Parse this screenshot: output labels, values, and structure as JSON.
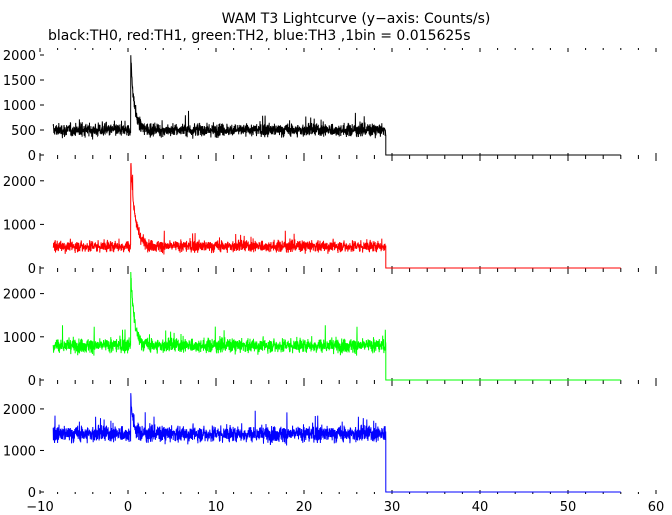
{
  "chart_data": {
    "type": "line",
    "title": "WAM T3 Lightcurve (y−axis: Counts/s)",
    "subtitle": "black:TH0, red:TH1, green:TH2, blue:TH3 ,1bin = 0.015625s",
    "xlim": [
      -10,
      60
    ],
    "x_ticks": [
      "−10",
      "0",
      "10",
      "20",
      "30",
      "40",
      "50",
      "60"
    ],
    "x_tick_values": [
      -10,
      0,
      10,
      20,
      30,
      40,
      50,
      60
    ],
    "grid": false,
    "legend": "none",
    "colors": {
      "axis": "#000000"
    },
    "series": [
      {
        "color": "#000000",
        "ylim": [
          0,
          2100
        ],
        "y_ticks": [
          "0",
          "500",
          "1000",
          "1500",
          "2000"
        ],
        "y_tick_values": [
          0,
          500,
          1000,
          1500,
          2000
        ],
        "data_start": -8.5,
        "data_end": 29.3,
        "baseline": 500,
        "noise": 250,
        "burst": {
          "x": 0.3,
          "peak": 2000,
          "decay": 0.4
        },
        "tail_level": 0,
        "tail_end": 56
      },
      {
        "color": "#ff0000",
        "ylim": [
          0,
          2500
        ],
        "y_ticks": [
          "0",
          "1000",
          "2000"
        ],
        "y_tick_values": [
          0,
          1000,
          2000
        ],
        "data_start": -8.5,
        "data_end": 29.3,
        "baseline": 500,
        "noise": 260,
        "burst": {
          "x": 0.3,
          "peak": 2450,
          "decay": 0.5
        },
        "tail_level": 0,
        "tail_end": 56
      },
      {
        "color": "#00ff00",
        "ylim": [
          0,
          2500
        ],
        "y_ticks": [
          "0",
          "1000",
          "2000"
        ],
        "y_tick_values": [
          0,
          1000,
          2000
        ],
        "data_start": -8.5,
        "data_end": 29.3,
        "baseline": 800,
        "noise": 320,
        "burst": {
          "x": 0.3,
          "peak": 2550,
          "decay": 0.4
        },
        "tail_level": 0,
        "tail_end": 56
      },
      {
        "color": "#0000ff",
        "ylim": [
          0,
          2600
        ],
        "y_ticks": [
          "0",
          "1000",
          "2000"
        ],
        "y_tick_values": [
          0,
          1000,
          2000
        ],
        "data_start": -8.5,
        "data_end": 29.3,
        "baseline": 1400,
        "noise": 380,
        "burst": {
          "x": 0.3,
          "peak": 2300,
          "decay": 0.3
        },
        "tail_level": 0,
        "tail_end": 56
      }
    ]
  }
}
